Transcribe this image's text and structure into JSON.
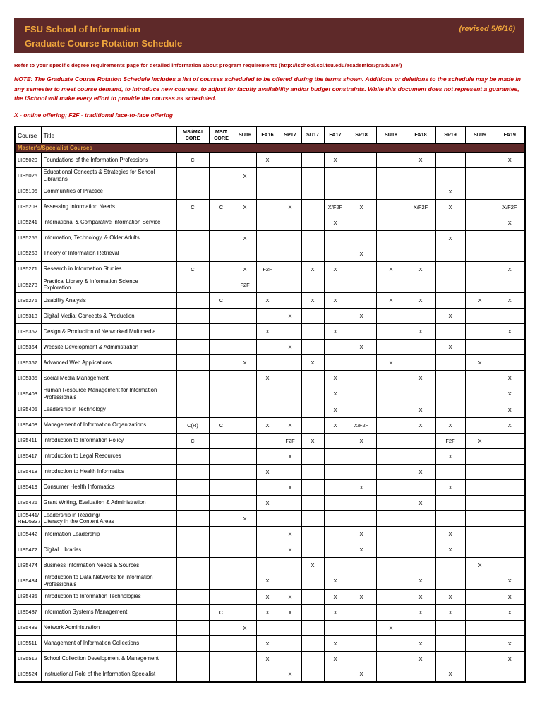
{
  "header": {
    "title_line1": "FSU School of Information",
    "title_line2": "Graduate Course Rotation Schedule",
    "revised": "(revised 5/6/16)"
  },
  "notes": {
    "refer": "Refer to your specific degree requirements page for detailed information about program requirements (http://ischool.cci.fsu.edu/academics/graduate/)",
    "note": "NOTE: The Graduate Course Rotation Schedule includes a list of courses scheduled to be offered during the terms shown. Additions or deletions to the schedule may be made in any semester to meet course demand, to introduce new courses, to adjust for faculty availability and/or budget constraints. While this document does not represent a guarantee, the iSchool will make every effort to provide the courses as scheduled.",
    "legend": "X - online offering; F2F - traditional face-to-face offering"
  },
  "colors": {
    "banner_bg": "#5E2929",
    "banner_gold": "#EFA53C",
    "note_red": "#C00000",
    "refer_red": "#A50000"
  },
  "table": {
    "section_header": "Master's/Specialist Courses",
    "col_headers": {
      "course": "Course",
      "title": "Title"
    },
    "columns": [
      "MSI/MAI\nCORE",
      "MSIT\nCORE",
      "SU16",
      "FA16",
      "SP17",
      "SU17",
      "FA17",
      "SP18",
      "SU18",
      "FA18",
      "SP19",
      "SU19",
      "FA19"
    ],
    "rows": [
      {
        "code": "LIS5020",
        "title": "Foundations of the Information Professions",
        "cells": [
          "C",
          "",
          "",
          "X",
          "",
          "",
          "X",
          "",
          "",
          "X",
          "",
          "",
          "X"
        ]
      },
      {
        "code": "LIS5025",
        "title": "Educational Concepts & Strategies for School Librarians",
        "cells": [
          "",
          "",
          "X",
          "",
          "",
          "",
          "",
          "",
          "",
          "",
          "",
          "",
          ""
        ]
      },
      {
        "code": "LIS5105",
        "title": "Communities of Practice",
        "cells": [
          "",
          "",
          "",
          "",
          "",
          "",
          "",
          "",
          "",
          "",
          "X",
          "",
          ""
        ]
      },
      {
        "code": "LIS5203",
        "title": "Assessing Information Needs",
        "cells": [
          "C",
          "C",
          "X",
          "",
          "X",
          "",
          "X/F2F",
          "X",
          "",
          "X/F2F",
          "X",
          "",
          "X/F2F"
        ]
      },
      {
        "code": "LIS5241",
        "title": "International & Comparative Information Service",
        "cells": [
          "",
          "",
          "",
          "",
          "",
          "",
          "X",
          "",
          "",
          "",
          "",
          "",
          "X"
        ]
      },
      {
        "code": "LIS5255",
        "title": "Information, Technology, & Older Adults",
        "cells": [
          "",
          "",
          "X",
          "",
          "",
          "",
          "",
          "",
          "",
          "",
          "X",
          "",
          ""
        ]
      },
      {
        "code": "LIS5263",
        "title": "Theory of Information Retrieval",
        "cells": [
          "",
          "",
          "",
          "",
          "",
          "",
          "",
          "X",
          "",
          "",
          "",
          "",
          ""
        ]
      },
      {
        "code": "LIS5271",
        "title": "Research in Information Studies",
        "cells": [
          "C",
          "",
          "X",
          "F2F",
          "",
          "X",
          "X",
          "",
          "X",
          "X",
          "",
          "",
          "X"
        ]
      },
      {
        "code": "LIS5273",
        "title": "Practical Library & Information Science\nExploration",
        "cells": [
          "",
          "",
          "F2F",
          "",
          "",
          "",
          "",
          "",
          "",
          "",
          "",
          "",
          ""
        ]
      },
      {
        "code": "LIS5275",
        "title": "Usability Analysis",
        "cells": [
          "",
          "C",
          "",
          "X",
          "",
          "X",
          "X",
          "",
          "X",
          "X",
          "",
          "X",
          "X"
        ]
      },
      {
        "code": "LIS5313",
        "title": "Digital Media:  Concepts & Production",
        "cells": [
          "",
          "",
          "",
          "",
          "X",
          "",
          "",
          "X",
          "",
          "",
          "X",
          "",
          ""
        ]
      },
      {
        "code": "LIS5362",
        "title": "Design & Production of Networked Multimedia",
        "cells": [
          "",
          "",
          "",
          "X",
          "",
          "",
          "X",
          "",
          "",
          "X",
          "",
          "",
          "X"
        ]
      },
      {
        "code": "LIS5364",
        "title": "Website Development & Administration",
        "cells": [
          "",
          "",
          "",
          "",
          "X",
          "",
          "",
          "X",
          "",
          "",
          "X",
          "",
          ""
        ]
      },
      {
        "code": "LIS5367",
        "title": "Advanced Web Applications",
        "cells": [
          "",
          "",
          "X",
          "",
          "",
          "X",
          "",
          "",
          "X",
          "",
          "",
          "X",
          ""
        ]
      },
      {
        "code": "LIS5385",
        "title": "Social Media Management",
        "cells": [
          "",
          "",
          "",
          "X",
          "",
          "",
          "X",
          "",
          "",
          "X",
          "",
          "",
          "X"
        ]
      },
      {
        "code": "LIS5403",
        "title": "Human Resource Management for Information\nProfessionals",
        "cells": [
          "",
          "",
          "",
          "",
          "",
          "",
          "X",
          "",
          "",
          "",
          "",
          "",
          "X"
        ]
      },
      {
        "code": "LIS5405",
        "title": "Leadership in Technology",
        "cells": [
          "",
          "",
          "",
          "",
          "",
          "",
          "X",
          "",
          "",
          "X",
          "",
          "",
          "X"
        ]
      },
      {
        "code": "LIS5408",
        "title": "Management of Information Organizations",
        "cells": [
          "C(R)",
          "C",
          "",
          "X",
          "X",
          "",
          "X",
          "X/F2F",
          "",
          "X",
          "X",
          "",
          "X"
        ]
      },
      {
        "code": "LIS5411",
        "title": "Introduction to Information Policy",
        "cells": [
          "C",
          "",
          "",
          "",
          "F2F",
          "X",
          "",
          "X",
          "",
          "",
          "F2F",
          "X",
          ""
        ]
      },
      {
        "code": "LIS5417",
        "title": "Introduction to Legal Resources",
        "cells": [
          "",
          "",
          "",
          "",
          "X",
          "",
          "",
          "",
          "",
          "",
          "X",
          "",
          ""
        ]
      },
      {
        "code": "LIS5418",
        "title": "Introduction to Health Informatics",
        "cells": [
          "",
          "",
          "",
          "X",
          "",
          "",
          "",
          "",
          "",
          "X",
          "",
          "",
          ""
        ]
      },
      {
        "code": "LIS5419",
        "title": "Consumer Health Informatics",
        "cells": [
          "",
          "",
          "",
          "",
          "X",
          "",
          "",
          "X",
          "",
          "",
          "X",
          "",
          ""
        ]
      },
      {
        "code": "LIS5426",
        "title": "Grant Writing, Evaluation & Administration",
        "cells": [
          "",
          "",
          "",
          "X",
          "",
          "",
          "",
          "",
          "",
          "X",
          "",
          "",
          ""
        ]
      },
      {
        "code": "LIS5441/\nRED5337",
        "title": "Leadership in Reading/\nLiteracy in the Content Areas",
        "cells": [
          "",
          "",
          "X",
          "",
          "",
          "",
          "",
          "",
          "",
          "",
          "",
          "",
          ""
        ]
      },
      {
        "code": "LIS5442",
        "title": "Information Leadership",
        "cells": [
          "",
          "",
          "",
          "",
          "X",
          "",
          "",
          "X",
          "",
          "",
          "X",
          "",
          ""
        ]
      },
      {
        "code": "LIS5472",
        "title": "Digital Libraries",
        "cells": [
          "",
          "",
          "",
          "",
          "X",
          "",
          "",
          "X",
          "",
          "",
          "X",
          "",
          ""
        ]
      },
      {
        "code": "LIS5474",
        "title": "Business Information Needs & Sources",
        "cells": [
          "",
          "",
          "",
          "",
          "",
          "X",
          "",
          "",
          "",
          "",
          "",
          "X",
          ""
        ]
      },
      {
        "code": "LIS5484",
        "title": "Introduction to Data Networks for Information\nProfessionals",
        "cells": [
          "",
          "",
          "",
          "X",
          "",
          "",
          "X",
          "",
          "",
          "X",
          "",
          "",
          "X"
        ]
      },
      {
        "code": "LIS5485",
        "title": "Introduction to Information Technologies",
        "cells": [
          "",
          "",
          "",
          "X",
          "X",
          "",
          "X",
          "X",
          "",
          "X",
          "X",
          "",
          "X"
        ]
      },
      {
        "code": "LIS5487",
        "title": "Information Systems Management",
        "cells": [
          "",
          "C",
          "",
          "X",
          "X",
          "",
          "X",
          "",
          "",
          "X",
          "X",
          "",
          "X"
        ]
      },
      {
        "code": "LIS5489",
        "title": "Network Administration",
        "cells": [
          "",
          "",
          "X",
          "",
          "",
          "",
          "",
          "",
          "X",
          "",
          "",
          "",
          ""
        ]
      },
      {
        "code": "LIS5511",
        "title": "Management of Information Collections",
        "cells": [
          "",
          "",
          "",
          "X",
          "",
          "",
          "X",
          "",
          "",
          "X",
          "",
          "",
          "X"
        ]
      },
      {
        "code": "LIS5512",
        "title": "School Collection Development & Management",
        "cells": [
          "",
          "",
          "",
          "X",
          "",
          "",
          "X",
          "",
          "",
          "X",
          "",
          "",
          "X"
        ]
      },
      {
        "code": "LIS5524",
        "title": "Instructional Role of the Information Specialist",
        "cells": [
          "",
          "",
          "",
          "",
          "X",
          "",
          "",
          "X",
          "",
          "",
          "X",
          "",
          ""
        ]
      }
    ]
  }
}
